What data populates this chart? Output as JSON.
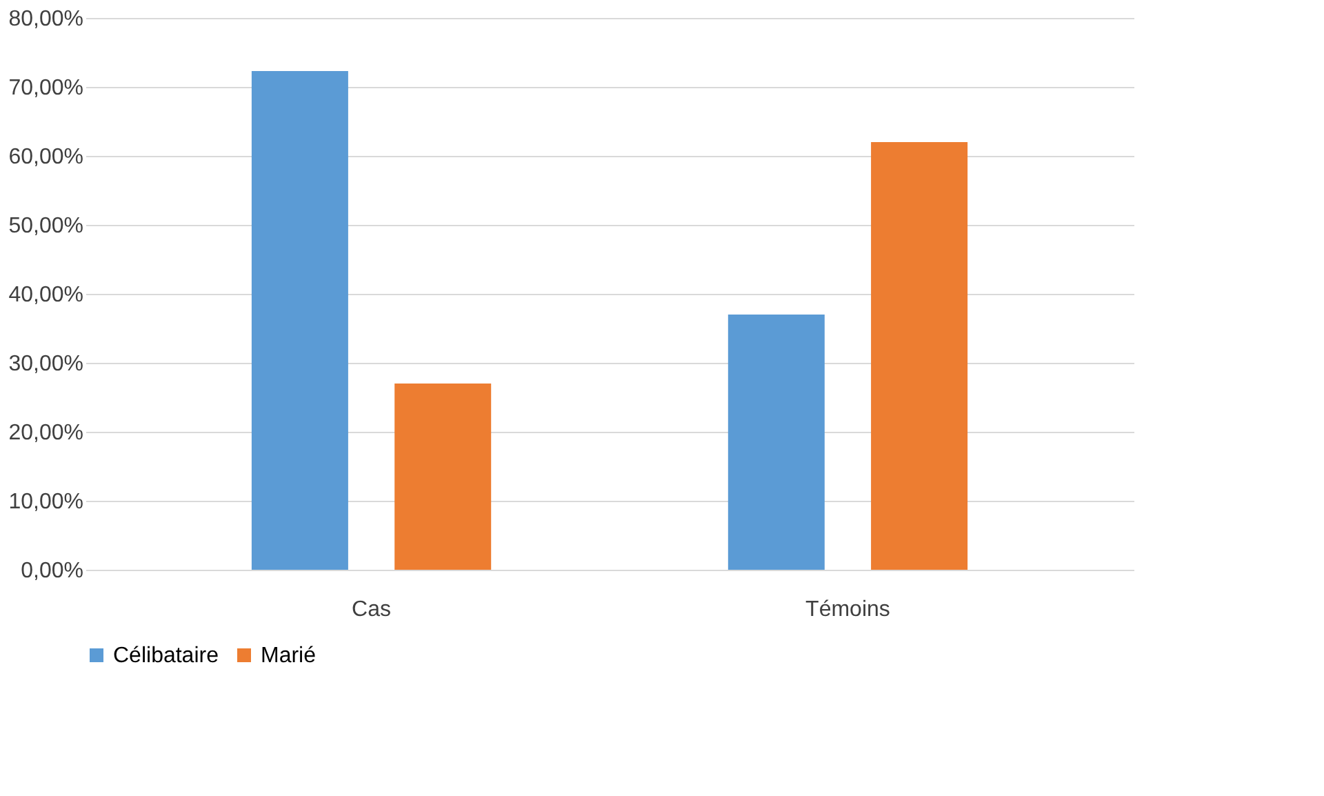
{
  "chart_data": {
    "type": "bar",
    "categories": [
      "Cas",
      "Témoins"
    ],
    "series": [
      {
        "name": "Célibataire",
        "color": "#5b9bd5",
        "values": [
          72.3,
          37.0
        ]
      },
      {
        "name": "Marié",
        "color": "#ed7d31",
        "values": [
          27.0,
          62.0
        ]
      }
    ],
    "ylim": [
      0,
      80
    ],
    "yticks": [
      {
        "value": 0,
        "label": "0,00%"
      },
      {
        "value": 10,
        "label": "10,00%"
      },
      {
        "value": 20,
        "label": "20,00%"
      },
      {
        "value": 30,
        "label": "30,00%"
      },
      {
        "value": 40,
        "label": "40,00%"
      },
      {
        "value": 50,
        "label": "50,00%"
      },
      {
        "value": 60,
        "label": "60,00%"
      },
      {
        "value": 70,
        "label": "70,00%"
      },
      {
        "value": 80,
        "label": "80,00%"
      }
    ],
    "grid": "y",
    "legend": "bottom"
  }
}
